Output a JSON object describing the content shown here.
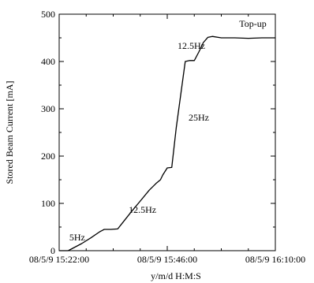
{
  "chart_data": {
    "type": "line",
    "title": "",
    "xlabel": "y/m/d H:M:S",
    "ylabel": "Stored Beam Current [mA]",
    "xlim": [
      "08/5/9 15:22:00",
      "08/5/9 16:10:00"
    ],
    "ylim": [
      0,
      500
    ],
    "grid": false,
    "x_ticks": [
      "08/5/9 15:22:00",
      "08/5/9 15:46:00",
      "08/5/9 16:10:00"
    ],
    "y_ticks": [
      "0",
      "100",
      "200",
      "300",
      "400",
      "500"
    ],
    "annotations": [
      {
        "text": "5Hz",
        "x": "08/5/9 15:26:00",
        "y": 22
      },
      {
        "text": "12.5Hz",
        "x": "08/5/9 15:40:30",
        "y": 80
      },
      {
        "text": "12.5Hz",
        "x": "08/5/9 15:51:20",
        "y": 427
      },
      {
        "text": "25Hz",
        "x": "08/5/9 15:53:00",
        "y": 275
      },
      {
        "text": "Top-up",
        "x": "08/5/9 16:05:00",
        "y": 473
      }
    ],
    "series": [
      {
        "x": [
          "08/5/9 15:22:00",
          "08/5/9 15:24:00",
          "08/5/9 15:25:00",
          "08/5/9 15:27:00",
          "08/5/9 15:29:00",
          "08/5/9 15:31:00",
          "08/5/9 15:32:00",
          "08/5/9 15:33:30",
          "08/5/9 15:35:00",
          "08/5/9 15:36:00",
          "08/5/9 15:38:00",
          "08/5/9 15:40:00",
          "08/5/9 15:42:00",
          "08/5/9 15:43:30",
          "08/5/9 15:44:30",
          "08/5/9 15:45:00",
          "08/5/9 15:46:00",
          "08/5/9 15:47:00",
          "08/5/9 15:48:00",
          "08/5/9 15:49:00",
          "08/5/9 15:50:00",
          "08/5/9 15:51:00",
          "08/5/9 15:52:00",
          "08/5/9 15:53:00",
          "08/5/9 15:54:00",
          "08/5/9 15:55:00",
          "08/5/9 15:56:00",
          "08/5/9 15:58:00",
          "08/5/9 16:01:00",
          "08/5/9 16:04:00",
          "08/5/9 16:07:00",
          "08/5/9 16:10:00"
        ],
        "values": [
          0,
          0,
          5,
          15,
          27,
          40,
          45,
          45,
          46,
          58,
          82,
          105,
          128,
          142,
          150,
          160,
          175,
          176,
          260,
          330,
          400,
          402,
          402,
          420,
          440,
          451,
          453,
          450,
          450,
          449,
          450,
          450
        ]
      }
    ]
  }
}
